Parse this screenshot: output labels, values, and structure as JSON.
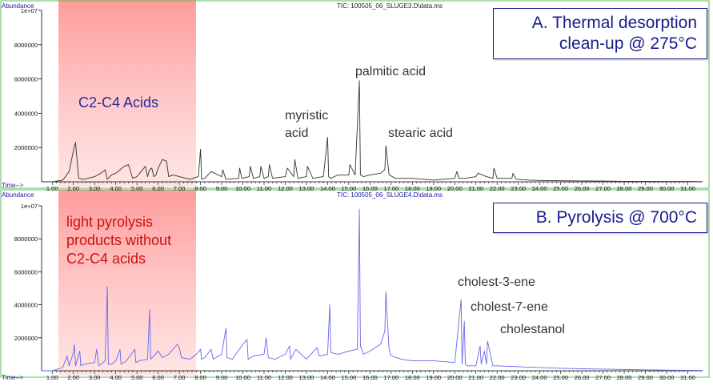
{
  "chart_data": [
    {
      "type": "line",
      "title": "TIC: 100505_06_SLUGE3.D\\data.ms",
      "ylabel": "Abundance",
      "xlabel": "Time-->",
      "xlim": [
        0.5,
        31.7
      ],
      "ylim": [
        0,
        10000000
      ],
      "x_ticks": [
        "1.00",
        "2.00",
        "3.00",
        "4.00",
        "5.00",
        "6.00",
        "7.00",
        "8.00",
        "9.00",
        "10.00",
        "11.00",
        "12.00",
        "13.00",
        "14.00",
        "15.00",
        "16.00",
        "17.00",
        "18.00",
        "19.00",
        "20.00",
        "21.00",
        "22.00",
        "23.00",
        "24.00",
        "25.00",
        "26.00",
        "27.00",
        "28.00",
        "29.00",
        "30.00",
        "31.00"
      ],
      "y_ticks": [
        "2000000",
        "4000000",
        "6000000",
        "8000000",
        "1e+07"
      ],
      "series": [
        {
          "line_color": "#333333",
          "x": [
            0.5,
            1.0,
            1.5,
            1.8,
            2.0,
            2.1,
            2.25,
            2.5,
            3.0,
            3.3,
            3.5,
            3.6,
            3.8,
            4.0,
            4.2,
            4.4,
            4.6,
            4.8,
            5.0,
            5.2,
            5.4,
            5.5,
            5.6,
            5.7,
            5.8,
            5.9,
            6.0,
            6.2,
            6.4,
            6.5,
            6.7,
            7.0,
            7.5,
            7.9,
            8.0,
            8.05,
            8.2,
            8.5,
            9.0,
            9.05,
            9.2,
            9.8,
            9.85,
            9.95,
            10.3,
            10.35,
            10.5,
            10.8,
            10.85,
            11.0,
            11.2,
            11.25,
            11.4,
            12.0,
            12.1,
            12.4,
            12.45,
            12.6,
            13.0,
            13.05,
            13.3,
            13.8,
            14.0,
            14.05,
            14.15,
            14.5,
            15.0,
            15.05,
            15.3,
            15.5,
            15.55,
            15.7,
            16.0,
            16.5,
            16.7,
            16.75,
            16.9,
            17.2,
            18.0,
            19.0,
            20.0,
            20.1,
            20.2,
            20.5,
            21.0,
            21.1,
            21.5,
            21.8,
            21.85,
            22.0,
            22.7,
            22.75,
            22.9,
            23.5,
            24.0,
            25.0,
            26.0,
            27.0,
            28.0,
            29.0,
            30.0,
            31.0,
            31.7
          ],
          "y": [
            0,
            0,
            100000,
            600000,
            1800000,
            2300000,
            200000,
            150000,
            300000,
            500000,
            700000,
            150000,
            400000,
            500000,
            700000,
            900000,
            1000000,
            200000,
            300000,
            600000,
            900000,
            300000,
            700000,
            800000,
            300000,
            400000,
            800000,
            1300000,
            1200000,
            300000,
            400000,
            300000,
            150000,
            300000,
            1900000,
            150000,
            200000,
            600000,
            300000,
            700000,
            150000,
            200000,
            800000,
            200000,
            300000,
            900000,
            200000,
            300000,
            900000,
            200000,
            300000,
            1000000,
            200000,
            300000,
            800000,
            300000,
            1300000,
            200000,
            300000,
            900000,
            200000,
            300000,
            2600000,
            300000,
            200000,
            400000,
            400000,
            1000000,
            400000,
            5900000,
            400000,
            300000,
            400000,
            500000,
            700000,
            2100000,
            400000,
            200000,
            200000,
            100000,
            200000,
            600000,
            200000,
            200000,
            300000,
            500000,
            300000,
            200000,
            800000,
            200000,
            200000,
            500000,
            150000,
            100000,
            80000,
            60000,
            50000,
            40000,
            30000,
            30000,
            20000,
            20000,
            10000
          ]
        }
      ],
      "annotations": [
        "C2-C4 Acids",
        "myristic acid",
        "palmitic acid",
        "stearic acid"
      ],
      "legend_box": [
        "A. Thermal desorption",
        "clean-up @ 275°C"
      ]
    },
    {
      "type": "line",
      "title": "TIC: 100505_06_SLUGE4.D\\data.ms",
      "ylabel": "Abundance",
      "xlabel": "Time-->",
      "xlim": [
        0.5,
        31.7
      ],
      "ylim": [
        0,
        10000000
      ],
      "x_ticks": [
        "1.00",
        "2.00",
        "3.00",
        "4.00",
        "5.00",
        "6.00",
        "7.00",
        "8.00",
        "9.00",
        "10.00",
        "11.00",
        "12.00",
        "13.00",
        "14.00",
        "15.00",
        "16.00",
        "17.00",
        "18.00",
        "19.00",
        "20.00",
        "21.00",
        "22.00",
        "23.00",
        "24.00",
        "25.00",
        "26.00",
        "27.00",
        "28.00",
        "29.00",
        "30.00",
        "31.00"
      ],
      "y_ticks": [
        "2000000",
        "4000000",
        "6000000",
        "8000000",
        "1e+07"
      ],
      "series": [
        {
          "line_color": "#6666ee",
          "x": [
            0.5,
            1.0,
            1.5,
            1.7,
            1.8,
            2.0,
            2.05,
            2.1,
            2.3,
            2.35,
            2.5,
            3.0,
            3.1,
            3.2,
            3.5,
            3.6,
            3.65,
            3.8,
            4.0,
            4.2,
            4.25,
            4.5,
            4.9,
            4.95,
            5.1,
            5.5,
            5.6,
            5.65,
            5.8,
            6.0,
            6.2,
            6.5,
            6.9,
            7.0,
            7.1,
            7.5,
            7.8,
            8.0,
            8.05,
            8.2,
            8.5,
            8.6,
            9.0,
            9.2,
            9.25,
            9.5,
            10.0,
            10.2,
            10.25,
            10.5,
            11.0,
            11.1,
            11.2,
            11.5,
            12.0,
            12.2,
            12.25,
            12.5,
            13.0,
            13.5,
            13.6,
            14.0,
            14.1,
            14.15,
            14.5,
            15.0,
            15.4,
            15.5,
            15.55,
            15.7,
            16.0,
            16.5,
            16.7,
            16.75,
            16.9,
            17.0,
            17.5,
            18.0,
            19.0,
            20.0,
            20.3,
            20.35,
            20.45,
            20.5,
            20.6,
            20.7,
            21.0,
            21.2,
            21.25,
            21.4,
            21.5,
            21.55,
            21.8,
            22.0,
            23.0,
            24.0,
            25.0,
            26.0,
            27.0,
            28.0,
            29.0,
            30.0,
            31.0,
            31.7
          ],
          "y": [
            0,
            0,
            200000,
            900000,
            300000,
            1100000,
            1600000,
            300000,
            1200000,
            300000,
            400000,
            500000,
            1300000,
            300000,
            600000,
            5100000,
            400000,
            400000,
            600000,
            1300000,
            400000,
            600000,
            1300000,
            500000,
            600000,
            700000,
            3700000,
            700000,
            900000,
            1200000,
            800000,
            1000000,
            1600000,
            1400000,
            800000,
            700000,
            1000000,
            1300000,
            700000,
            800000,
            1300000,
            700000,
            1000000,
            2600000,
            800000,
            700000,
            1600000,
            1900000,
            700000,
            900000,
            1000000,
            2000000,
            800000,
            700000,
            1000000,
            1500000,
            700000,
            1300000,
            700000,
            1400000,
            900000,
            1000000,
            4000000,
            1100000,
            1000000,
            1200000,
            1300000,
            9800000,
            1500000,
            1000000,
            1200000,
            1600000,
            2400000,
            4800000,
            1300000,
            900000,
            700000,
            600000,
            600000,
            500000,
            4300000,
            400000,
            3000000,
            400000,
            300000,
            300000,
            300000,
            1500000,
            400000,
            1200000,
            400000,
            1800000,
            300000,
            300000,
            250000,
            200000,
            150000,
            120000,
            100000,
            80000,
            60000,
            40000,
            30000,
            20000
          ]
        }
      ],
      "annotations": [
        "light pyrolysis products without C2-C4 acids",
        "cholest-3-ene",
        "cholest-7-ene",
        "cholestanol"
      ],
      "legend_box": [
        "B. Pyrolysis  @ 700°C"
      ]
    }
  ],
  "ui": {
    "top_title": "TIC: 100505_06_SLUGE3.D\\data.ms",
    "bottom_title": "TIC: 100505_06_SLUGE4.D\\data.ms",
    "abundance_label": "Abundance",
    "time_label": "Time-->",
    "top_box_line1": "A. Thermal desorption",
    "top_box_line2": "clean-up @ 275°C",
    "bottom_box_line1": "B. Pyrolysis  @ 700°C",
    "c2c4_label": "C2-C4 Acids",
    "myristic_line1": "myristic",
    "myristic_line2": "acid",
    "palmitic_label": "palmitic acid",
    "stearic_label": "stearic acid",
    "pyro_line1": "light pyrolysis",
    "pyro_line2": "products without",
    "pyro_line3": "C2-C4 acids",
    "cholest3_label": "cholest-3-ene",
    "cholest7_label": "cholest-7-ene",
    "cholestanol_label": "cholestanol"
  },
  "colors": {
    "frame": "#5dbb5d",
    "highlight": "#ff8080",
    "top_trace": "#333333",
    "bottom_trace": "#6666ee",
    "box_text": "#1a1a8c",
    "c2c4_text": "#2a2a9a",
    "pyro_text": "#cc1111",
    "annot_text": "#333333",
    "axis_label": "#1a1aaa"
  }
}
